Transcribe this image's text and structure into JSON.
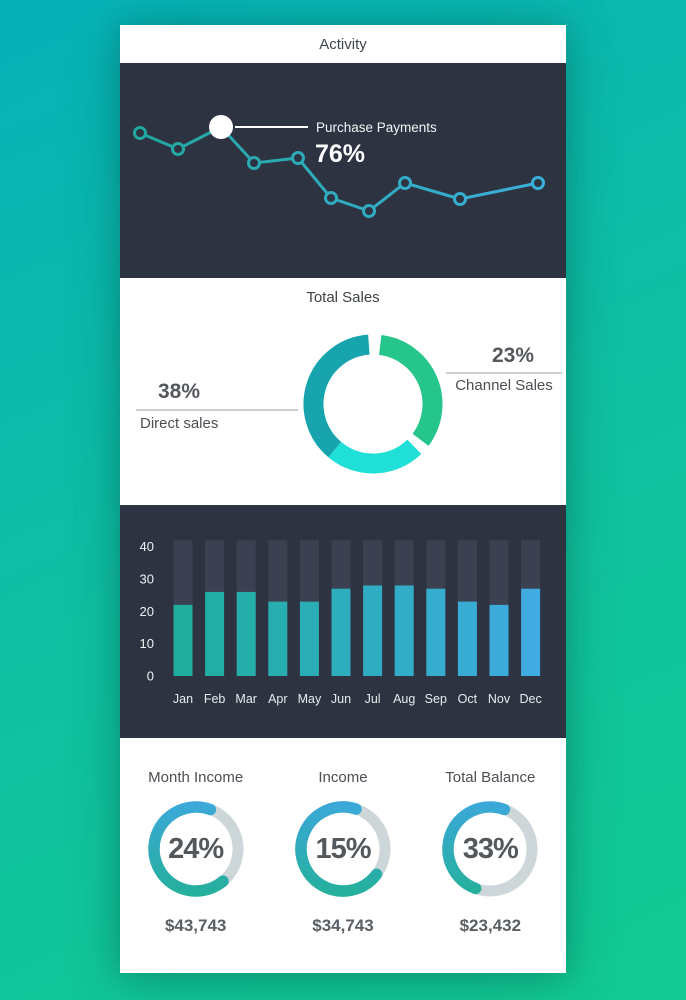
{
  "header": {
    "title": "Activity"
  },
  "colors": {
    "bg_gradient_start": "#06b1b8",
    "bg_gradient_end": "#12cb92",
    "panel_dark": "#2e3342",
    "bar_track": "#3b4150",
    "axis_text": "#eef1f4",
    "line_gradient_start": "#21a79c",
    "line_gradient_end": "#3cb0e0",
    "donut_green": "#26c58b",
    "donut_cyan": "#1fdfd6",
    "donut_teal": "#17a4ad",
    "gauge_blue": "#3da8dc",
    "gauge_green": "#23b098",
    "gauge_track": "#cdd7da",
    "callout_white": "#ffffff"
  },
  "chart_data": [
    {
      "id": "activity-line",
      "type": "line",
      "title": "Activity",
      "axes": "none",
      "points_rel": [
        [
          20,
          70
        ],
        [
          58,
          86
        ],
        [
          101,
          64
        ],
        [
          134,
          100
        ],
        [
          178,
          95
        ],
        [
          211,
          135
        ],
        [
          249,
          148
        ],
        [
          285,
          120
        ],
        [
          340,
          136
        ],
        [
          418,
          120
        ]
      ],
      "highlight": {
        "index": 2,
        "label": "Purchase Payments",
        "value": "76%"
      }
    },
    {
      "id": "total-sales-donut",
      "type": "pie",
      "title": "Total Sales",
      "slices": [
        {
          "label": "Channel Sales",
          "pct_label": "23%",
          "color": "#26c58b",
          "start_deg": 7,
          "end_deg": 127
        },
        {
          "label": "",
          "pct_label": "",
          "color": "#1fdfd6",
          "start_deg": 136,
          "end_deg": 220
        },
        {
          "label": "Direct sales",
          "pct_label": "38%",
          "color": "#17a4ad",
          "start_deg": 220,
          "end_deg": 356
        }
      ]
    },
    {
      "id": "monthly-bars",
      "type": "bar",
      "categories": [
        "Jan",
        "Feb",
        "Mar",
        "Apr",
        "May",
        "Jun",
        "Jul",
        "Aug",
        "Sep",
        "Oct",
        "Nov",
        "Dec"
      ],
      "values": [
        22,
        26,
        26,
        23,
        23,
        27,
        28,
        28,
        27,
        23,
        22,
        27
      ],
      "track_max": 42,
      "yticks": [
        0,
        10,
        20,
        30,
        40
      ],
      "ylim": [
        0,
        42
      ]
    },
    {
      "id": "income-gauges",
      "type": "donut-gauges",
      "items": [
        {
          "title": "Month Income",
          "pct": "24%",
          "amount": "$43,743",
          "arc_start_deg": 140,
          "arc_end_deg": 380
        },
        {
          "title": "Income",
          "pct": "15%",
          "amount": "$34,743",
          "arc_start_deg": 127,
          "arc_end_deg": 378
        },
        {
          "title": "Total Balance",
          "pct": "33%",
          "amount": "$23,432",
          "arc_start_deg": 200,
          "arc_end_deg": 380
        }
      ]
    }
  ]
}
